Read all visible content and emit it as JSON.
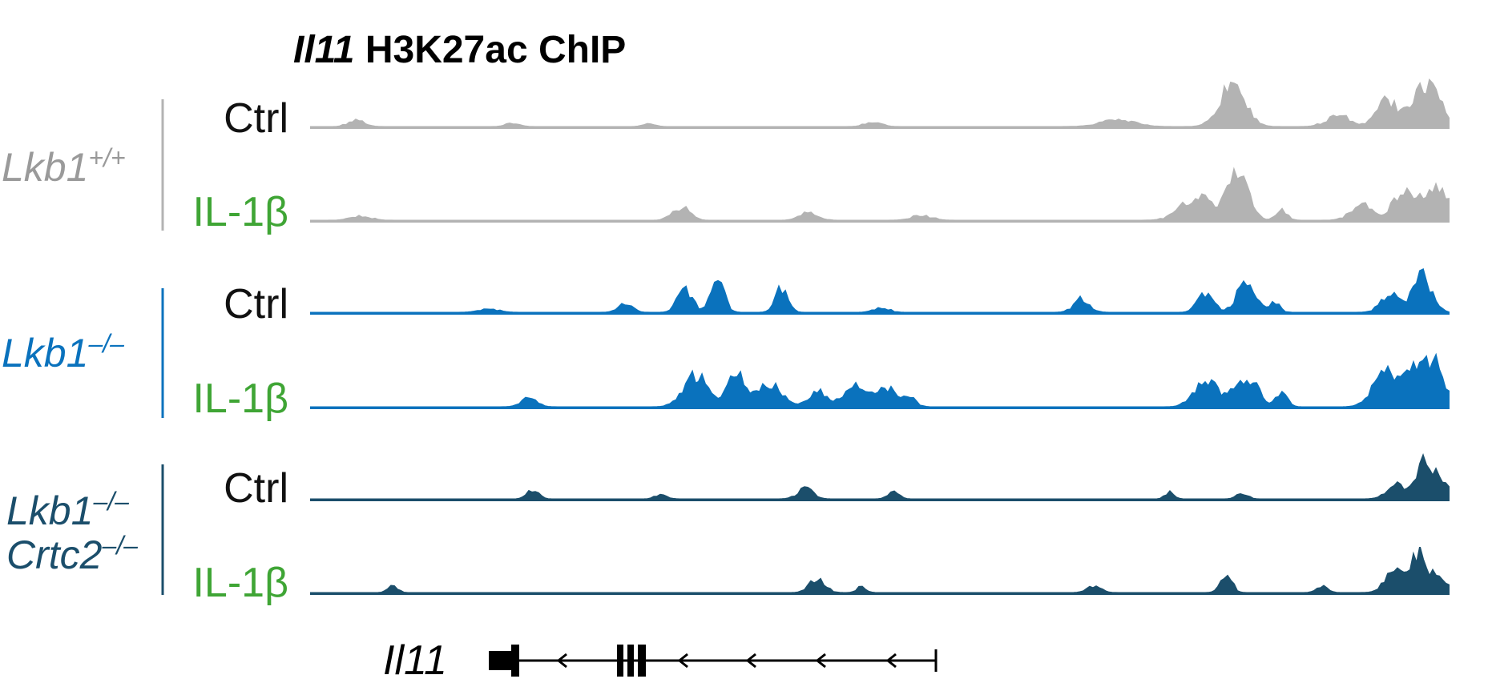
{
  "title": {
    "gene": "Il11",
    "rest": " H3K27ac ChIP"
  },
  "colors": {
    "wt": "#b3b3b3",
    "wt_label": "#9a9a9a",
    "ko": "#0a72bd",
    "dko": "#1b4e6b",
    "ctrl_label": "#111111",
    "il1b_label": "#3fa535"
  },
  "groups": [
    {
      "id": "wt",
      "lines": [
        {
          "base": "Lkb1",
          "sup": "+/+"
        }
      ]
    },
    {
      "id": "ko",
      "lines": [
        {
          "base": "Lkb1",
          "sup": "–/–"
        }
      ]
    },
    {
      "id": "dko",
      "lines": [
        {
          "base": "Lkb1",
          "sup": "–/–"
        },
        {
          "base": "Crtc2",
          "sup": "–/–"
        }
      ]
    }
  ],
  "tracks": [
    {
      "group": "wt",
      "condition": "Ctrl"
    },
    {
      "group": "wt",
      "condition": "IL-1β"
    },
    {
      "group": "ko",
      "condition": "Ctrl"
    },
    {
      "group": "ko",
      "condition": "IL-1β"
    },
    {
      "group": "dko",
      "condition": "Ctrl"
    },
    {
      "group": "dko",
      "condition": "IL-1β"
    }
  ],
  "gene_model": {
    "label": "Il11",
    "strand": "-"
  }
}
